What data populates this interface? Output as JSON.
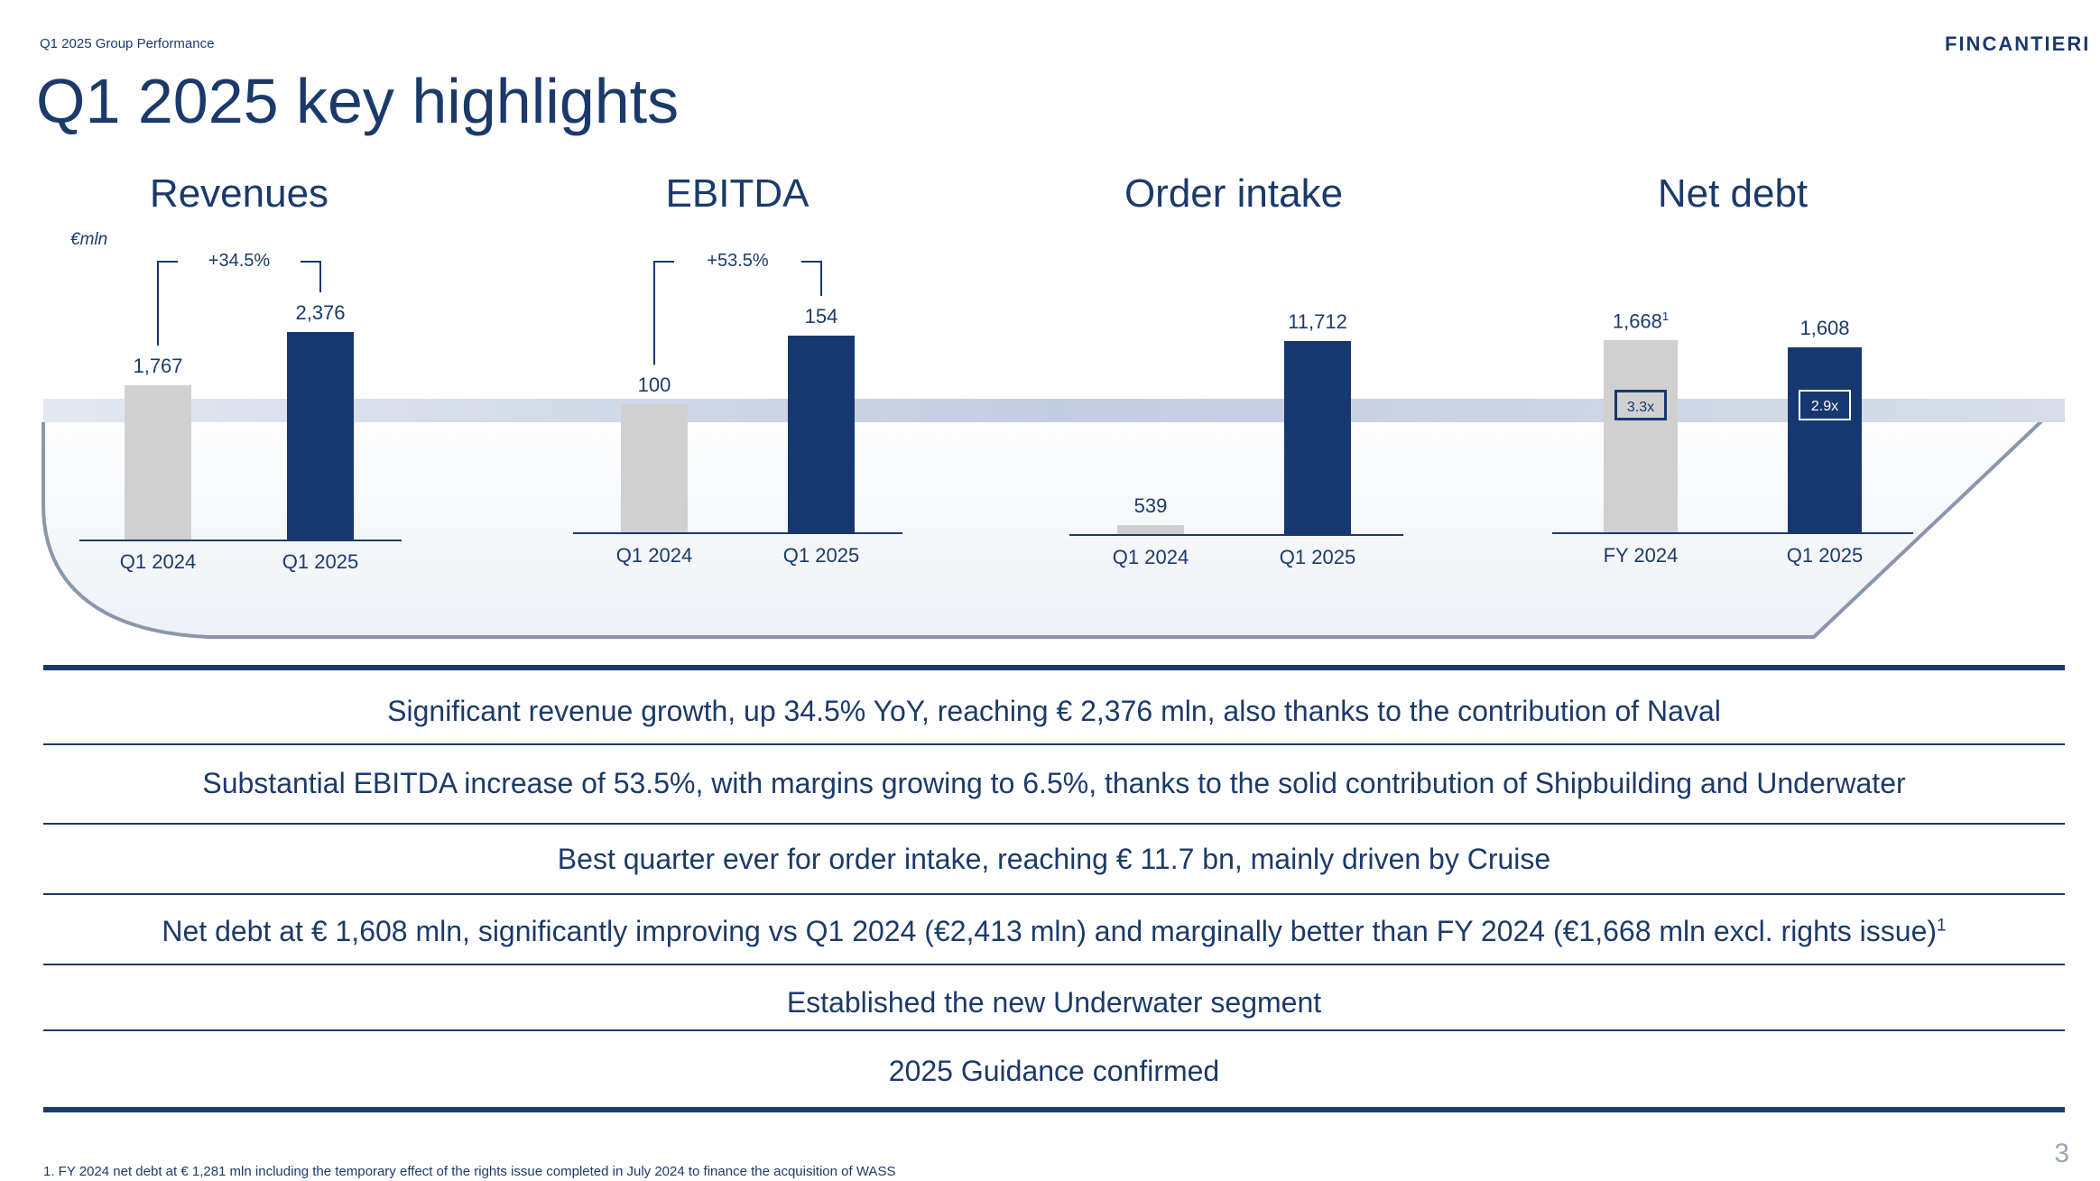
{
  "header": {
    "section": "Q1 2025 Group Performance",
    "logo": "FINCANTIERI",
    "title": "Q1 2025 key highlights"
  },
  "unit": "€mln",
  "colors": {
    "navy": "#17386f",
    "grey": "#d0d0d0",
    "band": "#c9d3e4"
  },
  "chart_data": [
    {
      "type": "bar",
      "title": "Revenues",
      "categories": [
        "Q1 2024",
        "Q1 2025"
      ],
      "values": [
        1767,
        2376
      ],
      "value_labels": [
        "1,767",
        "2,376"
      ],
      "growth": "+34.5%"
    },
    {
      "type": "bar",
      "title": "EBITDA",
      "categories": [
        "Q1 2024",
        "Q1 2025"
      ],
      "values": [
        100,
        154
      ],
      "value_labels": [
        "100",
        "154"
      ],
      "growth": "+53.5%"
    },
    {
      "type": "bar",
      "title": "Order intake",
      "categories": [
        "Q1 2024",
        "Q1 2025"
      ],
      "values": [
        539,
        11712
      ],
      "value_labels": [
        "539",
        "11,712"
      ]
    },
    {
      "type": "bar",
      "title": "Net debt",
      "categories": [
        "FY 2024",
        "Q1 2025"
      ],
      "values": [
        1668,
        1608
      ],
      "value_labels": [
        "1,668",
        "1,608"
      ],
      "value_footnotes": [
        "1",
        ""
      ],
      "ratios": [
        "3.3x",
        "2.9x"
      ]
    }
  ],
  "highlights": [
    {
      "text": "Significant revenue growth, up 34.5% YoY, reaching € 2,376 mln, also thanks to the contribution of Naval"
    },
    {
      "text": "Substantial EBITDA increase of 53.5%, with margins growing to 6.5%, thanks to the solid contribution of Shipbuilding and Underwater"
    },
    {
      "text": "Best quarter ever for order intake, reaching € 11.7 bn, mainly driven by Cruise"
    },
    {
      "text": "Net debt at € 1,608 mln, significantly improving vs Q1 2024 (€2,413 mln) and marginally better than FY 2024 (€1,668 mln excl. rights issue)",
      "sup": "1"
    },
    {
      "text": "Established the new Underwater segment"
    },
    {
      "text": "2025 Guidance confirmed"
    }
  ],
  "footnote": "1.  FY 2024 net debt at € 1,281 mln including the temporary effect of the rights issue completed in July 2024 to finance the acquisition of WASS",
  "page_number": "3"
}
